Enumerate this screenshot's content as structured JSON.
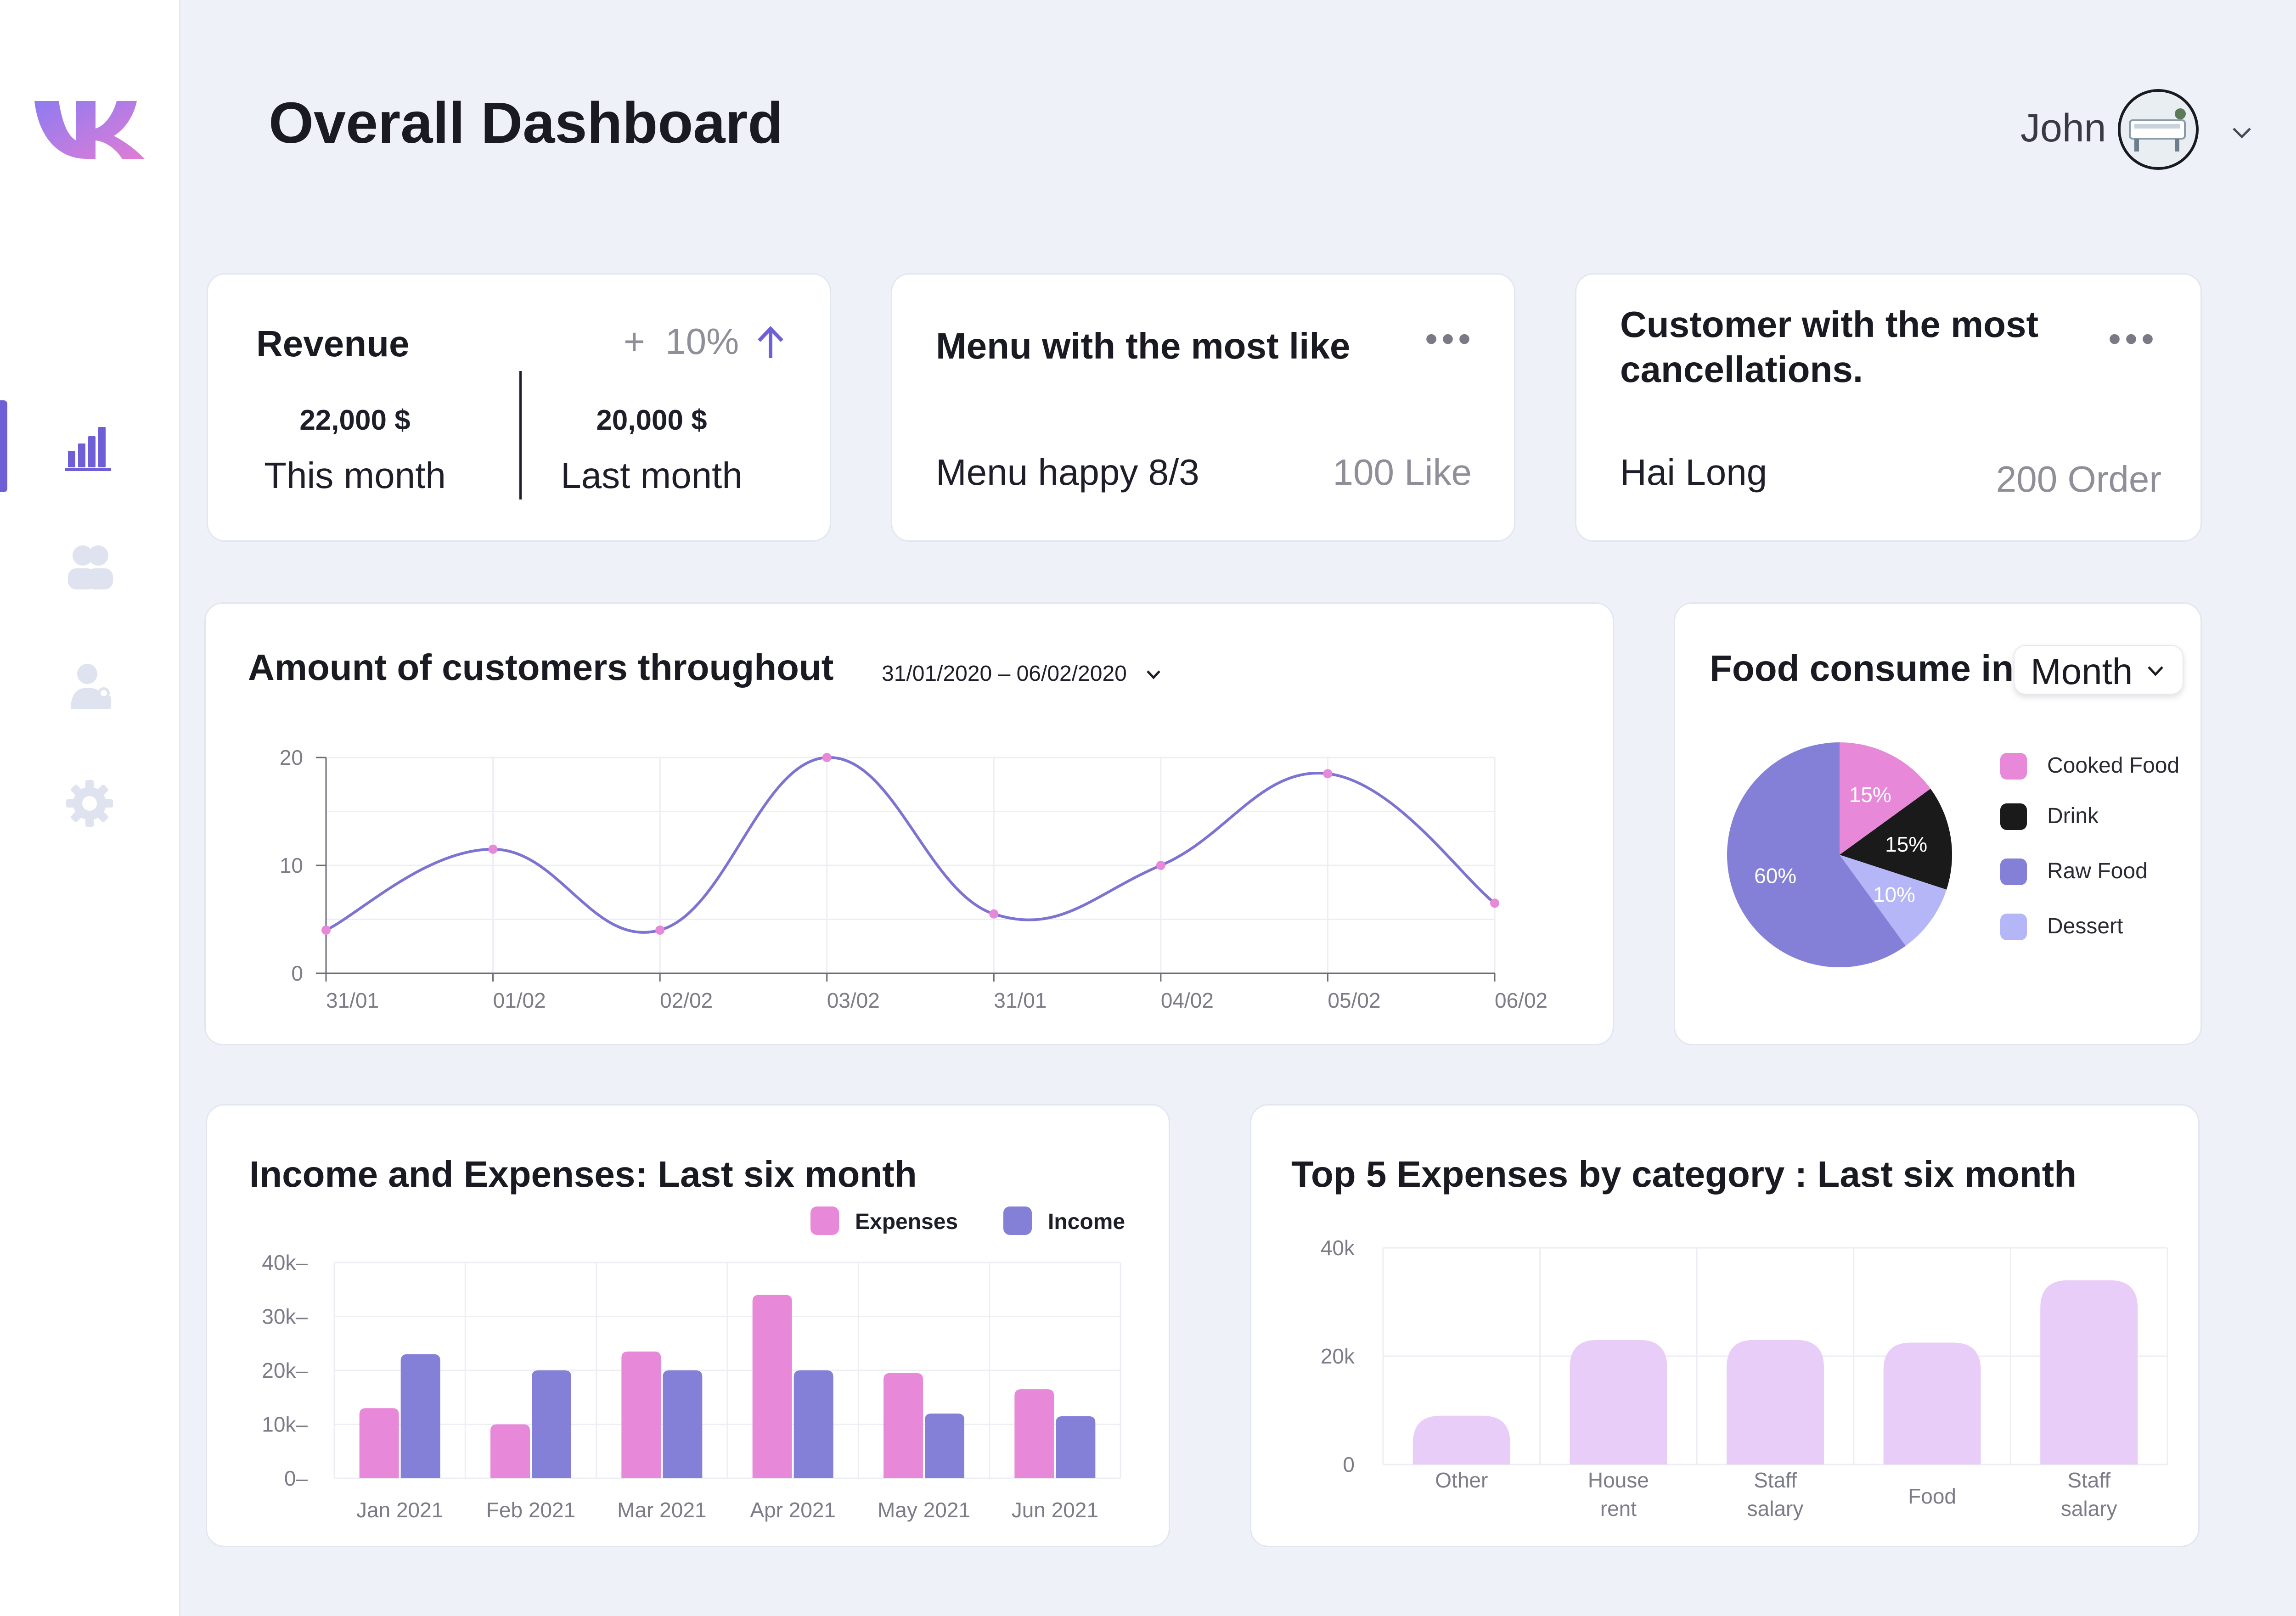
{
  "header": {
    "title": "Overall Dashboard",
    "user_name": "John"
  },
  "sidebar": {
    "items": [
      "chart-icon",
      "users-icon",
      "user-icon",
      "gear-icon"
    ],
    "active_index": 0
  },
  "colors": {
    "accent": "#6e5fd6",
    "pink": "#e888d8",
    "purple": "#8480d8",
    "lilac": "#e8cdf8",
    "black": "#1a1a1a",
    "lavender": "#b5b6f8"
  },
  "revenue": {
    "title": "Revenue",
    "change_prefix": "+",
    "change": "10%",
    "this_month_value": "22,000 $",
    "this_month_label": "This month",
    "last_month_value": "20,000 $",
    "last_month_label": "Last month"
  },
  "menu_like": {
    "title": "Menu with the most like",
    "name": "Menu happy 8/3",
    "value": "100 Like"
  },
  "cancellations": {
    "title_line1": "Customer with the most",
    "title_line2": "cancellations.",
    "name": "Hai Long",
    "value": "200 Order"
  },
  "customers_chart": {
    "date_range": "31/01/2020 – 06/02/2020"
  },
  "food_chart": {
    "title": "Food consume in",
    "period": "Month"
  },
  "chart_data": [
    {
      "type": "line",
      "title": "Amount of customers throughout",
      "x": [
        "31/01",
        "01/02",
        "02/02",
        "03/02",
        "31/01",
        "04/02",
        "05/02",
        "06/02"
      ],
      "values": [
        4,
        11.5,
        4,
        20,
        5.5,
        10,
        18.5,
        6.5
      ],
      "ylim": [
        0,
        20
      ],
      "yticks": [
        0,
        10,
        20
      ],
      "grid": true
    },
    {
      "type": "pie",
      "title": "Food consume in Month",
      "labels": [
        "Cooked Food",
        "Drink",
        "Dessert",
        "Raw Food"
      ],
      "values": [
        15,
        15,
        10,
        60
      ],
      "value_labels": [
        "15%",
        "15%",
        "10%",
        "60%"
      ],
      "colors": [
        "#e888d8",
        "#1a1a1a",
        "#b5b6f8",
        "#8480d8"
      ],
      "legend_order": [
        "Cooked Food",
        "Drink",
        "Raw Food",
        "Dessert"
      ],
      "legend_colors": [
        "#e888d8",
        "#1a1a1a",
        "#8480d8",
        "#b5b6f8"
      ],
      "legend": "right"
    },
    {
      "type": "bar",
      "title": "Income and Expenses: Last six month",
      "categories": [
        "Jan 2021",
        "Feb 2021",
        "Mar 2021",
        "Apr 2021",
        "May 2021",
        "Jun 2021"
      ],
      "series": [
        {
          "name": "Expenses",
          "values": [
            13000,
            10000,
            23500,
            34000,
            19500,
            16500
          ],
          "color": "#e888d8"
        },
        {
          "name": "Income",
          "values": [
            23000,
            20000,
            20000,
            20000,
            12000,
            11500
          ],
          "color": "#8480d8"
        }
      ],
      "yticks": [
        "0",
        "10k",
        "20k",
        "30k",
        "40k"
      ],
      "ylim": [
        0,
        40000
      ],
      "legend": "top-right",
      "grid": true
    },
    {
      "type": "bar",
      "title": "Top 5 Expenses by category : Last six month",
      "categories": [
        [
          "Other"
        ],
        [
          "House",
          "rent"
        ],
        [
          "Staff",
          "salary"
        ],
        [
          "Food"
        ],
        [
          "Staff",
          "salary"
        ]
      ],
      "values": [
        9000,
        23000,
        23000,
        22500,
        34000
      ],
      "yticks": [
        "0",
        "20k",
        "40k"
      ],
      "ylim": [
        0,
        40000
      ],
      "color": "#e8cdf8",
      "grid": true
    }
  ]
}
